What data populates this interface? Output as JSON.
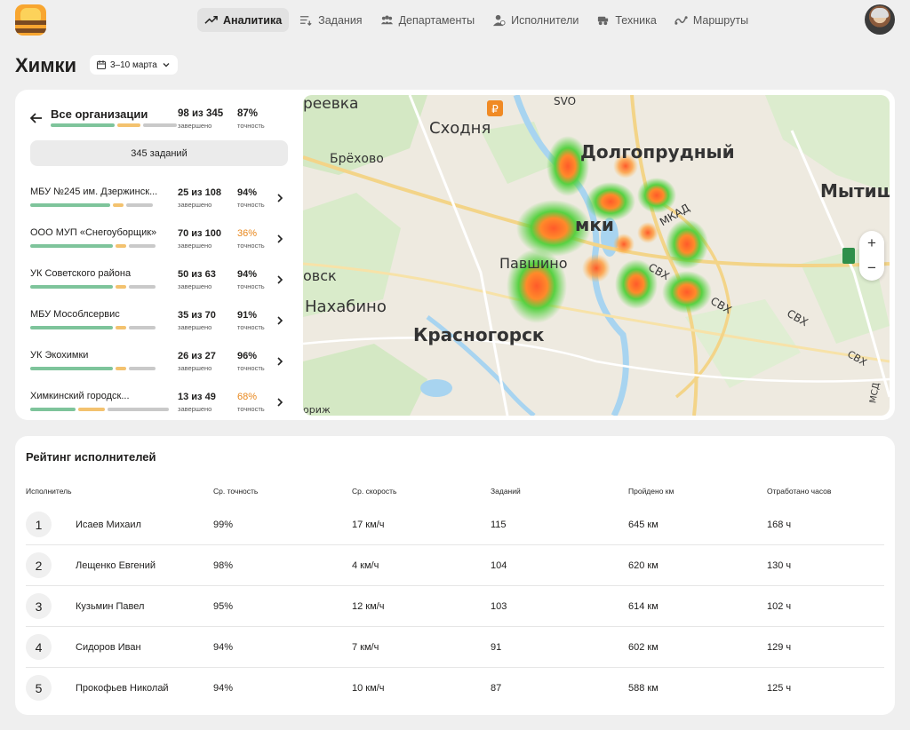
{
  "nav": [
    {
      "label": "Аналитика",
      "icon": "trend-up-icon",
      "active": true
    },
    {
      "label": "Задания",
      "icon": "list-icon",
      "active": false
    },
    {
      "label": "Департаменты",
      "icon": "group-icon",
      "active": false
    },
    {
      "label": "Исполнители",
      "icon": "person-icon",
      "active": false
    },
    {
      "label": "Техника",
      "icon": "vehicle-icon",
      "active": false
    },
    {
      "label": "Маршруты",
      "icon": "route-icon",
      "active": false
    }
  ],
  "page_title": "Химки",
  "date_range": "3–10 марта",
  "orgs_panel": {
    "title": "Все организации",
    "done": "98 из 345",
    "done_sub": "завершено",
    "accuracy": "87%",
    "accuracy_sub": "точность",
    "tasks_button": "345 заданий",
    "rows": [
      {
        "name": "МБУ №245 им. Дзержинск...",
        "done": "25 из 108",
        "accuracy": "94%",
        "warn": false,
        "bars": [
          0.6,
          0.08,
          0.2
        ]
      },
      {
        "name": "ООО МУП «Снегоуборщик»",
        "done": "70 из 100",
        "accuracy": "36%",
        "warn": true,
        "bars": [
          0.62,
          0.08,
          0.2
        ]
      },
      {
        "name": "УК Советского района",
        "done": "50 из 63",
        "accuracy": "94%",
        "warn": false,
        "bars": [
          0.62,
          0.08,
          0.2
        ]
      },
      {
        "name": "МБУ Мособлсервис",
        "done": "35 из 70",
        "accuracy": "91%",
        "warn": false,
        "bars": [
          0.62,
          0.08,
          0.2
        ]
      },
      {
        "name": "УК Экохимки",
        "done": "26 из 27",
        "accuracy": "96%",
        "warn": false,
        "bars": [
          0.62,
          0.08,
          0.2
        ]
      },
      {
        "name": "Химкинский городск...",
        "done": "13 из 49",
        "accuracy": "68%",
        "warn": true,
        "bars": [
          0.34,
          0.2,
          0.46
        ]
      }
    ]
  },
  "map": {
    "labels": [
      "реевка",
      "SVO",
      "Сходня",
      "Долгопрудный",
      "Брёхово",
      "Мытищ",
      "мки",
      "МКАД",
      "Павшино",
      "СВХ",
      "овск",
      "Нахабино",
      "СВХ",
      "Красногорск",
      "СВХ",
      "СВХ",
      "МСД",
      "ориж"
    ],
    "zoom_in": "+",
    "zoom_out": "−"
  },
  "rating": {
    "title": "Рейтинг исполнителей",
    "columns": [
      "Исполнитель",
      "Ср. точность",
      "Ср. скорость",
      "Заданий",
      "Пройдено км",
      "Отработано часов"
    ],
    "rows": [
      {
        "rank": "1",
        "name": "Исаев Михаил",
        "accuracy": "99%",
        "speed": "17 км/ч",
        "tasks": "115",
        "km": "645 км",
        "hours": "168 ч"
      },
      {
        "rank": "2",
        "name": "Лещенко Евгений",
        "accuracy": "98%",
        "speed": "4 км/ч",
        "tasks": "104",
        "km": "620 км",
        "hours": "130 ч"
      },
      {
        "rank": "3",
        "name": "Кузьмин Павел",
        "accuracy": "95%",
        "speed": "12 км/ч",
        "tasks": "103",
        "km": "614 км",
        "hours": "102 ч"
      },
      {
        "rank": "4",
        "name": "Сидоров Иван",
        "accuracy": "94%",
        "speed": "7 км/ч",
        "tasks": "91",
        "km": "602 км",
        "hours": "129 ч"
      },
      {
        "rank": "5",
        "name": "Прокофьев Николай",
        "accuracy": "94%",
        "speed": "10 км/ч",
        "tasks": "87",
        "km": "588 км",
        "hours": "125 ч"
      }
    ]
  },
  "colors": {
    "green": "#7ec49b",
    "yellow": "#f3c26f",
    "gray": "#c9c9c9",
    "warn": "#e8871c"
  }
}
